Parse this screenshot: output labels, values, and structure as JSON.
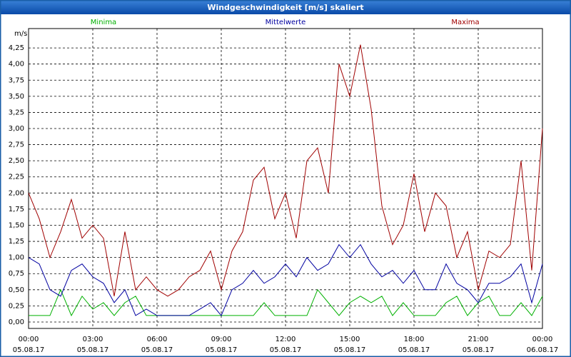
{
  "chart_data": {
    "type": "line",
    "title": "Windgeschwindigkeit [m/s] skaliert",
    "ylabel": "m/s",
    "x": [
      0,
      0.5,
      1,
      1.5,
      2,
      2.5,
      3,
      3.5,
      4,
      4.5,
      5,
      5.5,
      6,
      6.5,
      7,
      7.5,
      8,
      8.5,
      9,
      9.5,
      10,
      10.5,
      11,
      11.5,
      12,
      12.5,
      13,
      13.5,
      14,
      14.5,
      15,
      15.5,
      16,
      16.5,
      17,
      17.5,
      18,
      18.5,
      19,
      19.5,
      20,
      20.5,
      21,
      21.5,
      22,
      22.5,
      23,
      23.5,
      24
    ],
    "series": [
      {
        "name": "Minima",
        "color": "#00b000",
        "values": [
          0.1,
          0.1,
          0.1,
          0.5,
          0.1,
          0.4,
          0.2,
          0.3,
          0.1,
          0.3,
          0.4,
          0.1,
          0.1,
          0.1,
          0.1,
          0.1,
          0.1,
          0.1,
          0.1,
          0.1,
          0.1,
          0.1,
          0.3,
          0.1,
          0.1,
          0.1,
          0.1,
          0.5,
          0.3,
          0.1,
          0.3,
          0.4,
          0.3,
          0.4,
          0.1,
          0.3,
          0.1,
          0.1,
          0.1,
          0.3,
          0.4,
          0.1,
          0.3,
          0.4,
          0.1,
          0.1,
          0.3,
          0.1,
          0.4
        ]
      },
      {
        "name": "Mittelwerte",
        "color": "#0000a0",
        "values": [
          1.0,
          0.9,
          0.5,
          0.4,
          0.8,
          0.9,
          0.7,
          0.6,
          0.3,
          0.5,
          0.1,
          0.2,
          0.1,
          0.1,
          0.1,
          0.1,
          0.2,
          0.3,
          0.1,
          0.5,
          0.6,
          0.8,
          0.6,
          0.7,
          0.9,
          0.7,
          1.0,
          0.8,
          0.9,
          1.2,
          1.0,
          1.2,
          0.9,
          0.7,
          0.8,
          0.6,
          0.8,
          0.5,
          0.5,
          0.9,
          0.6,
          0.5,
          0.3,
          0.6,
          0.6,
          0.7,
          0.9,
          0.3,
          0.9
        ]
      },
      {
        "name": "Maxima",
        "color": "#a00000",
        "values": [
          2.0,
          1.6,
          1.0,
          1.4,
          1.9,
          1.3,
          1.5,
          1.3,
          0.4,
          1.4,
          0.5,
          0.7,
          0.5,
          0.4,
          0.5,
          0.7,
          0.8,
          1.1,
          0.5,
          1.1,
          1.4,
          2.2,
          2.4,
          1.6,
          2.0,
          1.3,
          2.5,
          2.7,
          2.0,
          4.0,
          3.5,
          4.3,
          3.3,
          1.8,
          1.2,
          1.5,
          2.3,
          1.4,
          2.0,
          1.8,
          1.0,
          1.4,
          0.5,
          1.1,
          1.0,
          1.2,
          2.5,
          0.8,
          3.0
        ]
      }
    ],
    "ylim": [
      -0.1,
      4.55
    ],
    "yticks": [
      {
        "value": 0,
        "label": "0,00"
      },
      {
        "value": 0.25,
        "label": "0,25"
      },
      {
        "value": 0.5,
        "label": "0,50"
      },
      {
        "value": 0.75,
        "label": "0,75"
      },
      {
        "value": 1,
        "label": "1,00"
      },
      {
        "value": 1.25,
        "label": "1,25"
      },
      {
        "value": 1.5,
        "label": "1,50"
      },
      {
        "value": 1.75,
        "label": "1,75"
      },
      {
        "value": 2,
        "label": "2,00"
      },
      {
        "value": 2.25,
        "label": "2,25"
      },
      {
        "value": 2.5,
        "label": "2,50"
      },
      {
        "value": 2.75,
        "label": "2,75"
      },
      {
        "value": 3,
        "label": "3,00"
      },
      {
        "value": 3.25,
        "label": "3,25"
      },
      {
        "value": 3.5,
        "label": "3,50"
      },
      {
        "value": 3.75,
        "label": "3,75"
      },
      {
        "value": 4,
        "label": "4,00"
      },
      {
        "value": 4.25,
        "label": "4,25"
      }
    ],
    "xlim": [
      0,
      24
    ],
    "xticks": [
      {
        "value": 0,
        "label": "00:00"
      },
      {
        "value": 3,
        "label": "03:00"
      },
      {
        "value": 6,
        "label": "06:00"
      },
      {
        "value": 9,
        "label": "09:00"
      },
      {
        "value": 12,
        "label": "12:00"
      },
      {
        "value": 15,
        "label": "15:00"
      },
      {
        "value": 18,
        "label": "18:00"
      },
      {
        "value": 21,
        "label": "21:00"
      },
      {
        "value": 24,
        "label": "00:00"
      }
    ],
    "xtick_dates": [
      "05.08.17",
      "05.08.17",
      "05.08.17",
      "05.08.17",
      "05.08.17",
      "05.08.17",
      "05.08.17",
      "05.08.17",
      "06.08.17"
    ],
    "grid": true
  }
}
